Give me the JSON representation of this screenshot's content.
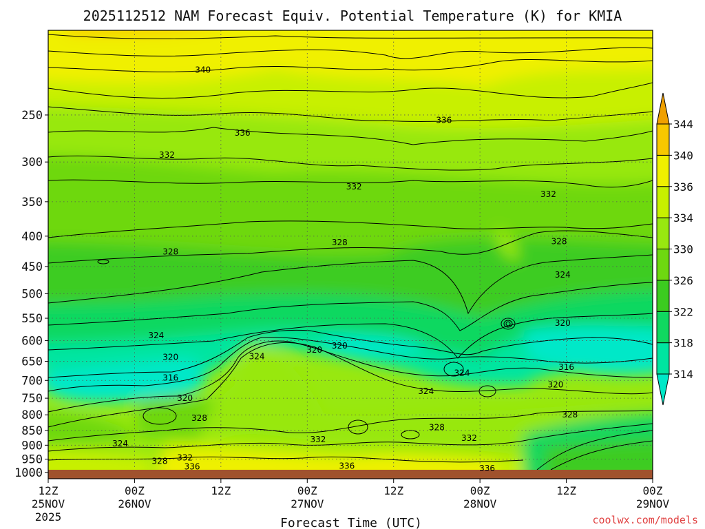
{
  "chart_data": {
    "type": "heatmap",
    "title": "2025112512 NAM Forecast Equiv. Potential Temperature (K) for KMIA",
    "xlabel": "Forecast Time (UTC)",
    "ylabel": "",
    "watermark": "coolwx.com/models",
    "x_ticks": [
      {
        "time": "12Z",
        "date": "25NOV",
        "year": "2025",
        "hour": 0
      },
      {
        "time": "00Z",
        "date": "26NOV",
        "year": "",
        "hour": 12
      },
      {
        "time": "12Z",
        "date": "",
        "year": "",
        "hour": 24
      },
      {
        "time": "00Z",
        "date": "27NOV",
        "year": "",
        "hour": 36
      },
      {
        "time": "12Z",
        "date": "",
        "year": "",
        "hour": 48
      },
      {
        "time": "00Z",
        "date": "28NOV",
        "year": "",
        "hour": 60
      },
      {
        "time": "12Z",
        "date": "",
        "year": "",
        "hour": 72
      },
      {
        "time": "00Z",
        "date": "29NOV",
        "year": "",
        "hour": 84
      }
    ],
    "x_range_hours": [
      0,
      84
    ],
    "y_scale": "log-pressure (hPa), inverted",
    "y_range": [
      1025,
      180
    ],
    "y_ticks": [
      250,
      300,
      350,
      400,
      450,
      500,
      550,
      600,
      650,
      700,
      750,
      800,
      850,
      900,
      950,
      1000
    ],
    "grid": true,
    "colorbar": {
      "position": "right",
      "levels": [
        314,
        318,
        322,
        326,
        330,
        334,
        336,
        340,
        344
      ],
      "colors": [
        "#00e8c8",
        "#00e5a0",
        "#10d860",
        "#3ccc20",
        "#6ed810",
        "#98e810",
        "#c8f000",
        "#f0f000",
        "#f8c800",
        "#f0a000"
      ]
    },
    "contour_labels": [
      {
        "value": "340",
        "hour": 21.5,
        "p": 210
      },
      {
        "value": "336",
        "hour": 27,
        "p": 268
      },
      {
        "value": "336",
        "hour": 55,
        "p": 255
      },
      {
        "value": "332",
        "hour": 16.5,
        "p": 292
      },
      {
        "value": "332",
        "hour": 42.5,
        "p": 330
      },
      {
        "value": "332",
        "hour": 69.5,
        "p": 340
      },
      {
        "value": "328",
        "hour": 17,
        "p": 425
      },
      {
        "value": "328",
        "hour": 40.5,
        "p": 410
      },
      {
        "value": "328",
        "hour": 71,
        "p": 408
      },
      {
        "value": "324",
        "hour": 71.5,
        "p": 465
      },
      {
        "value": "324",
        "hour": 15,
        "p": 588
      },
      {
        "value": "320",
        "hour": 17,
        "p": 640
      },
      {
        "value": "320",
        "hour": 71.5,
        "p": 560
      },
      {
        "value": "324",
        "hour": 29,
        "p": 638
      },
      {
        "value": "320",
        "hour": 37,
        "p": 622
      },
      {
        "value": "320",
        "hour": 40.5,
        "p": 612
      },
      {
        "value": "316",
        "hour": 17,
        "p": 693
      },
      {
        "value": "316",
        "hour": 72,
        "p": 665
      },
      {
        "value": "320",
        "hour": 70.5,
        "p": 712
      },
      {
        "value": "320",
        "hour": 19,
        "p": 750
      },
      {
        "value": "324",
        "hour": 57.5,
        "p": 680
      },
      {
        "value": "324",
        "hour": 52.5,
        "p": 730
      },
      {
        "value": "328",
        "hour": 21,
        "p": 810
      },
      {
        "value": "328",
        "hour": 54,
        "p": 840
      },
      {
        "value": "328",
        "hour": 72.5,
        "p": 800
      },
      {
        "value": "332",
        "hour": 37.5,
        "p": 880
      },
      {
        "value": "332",
        "hour": 58.5,
        "p": 875
      },
      {
        "value": "324",
        "hour": 10,
        "p": 895
      },
      {
        "value": "328",
        "hour": 15.5,
        "p": 958
      },
      {
        "value": "332",
        "hour": 19,
        "p": 945
      },
      {
        "value": "336",
        "hour": 20,
        "p": 978
      },
      {
        "value": "336",
        "hour": 41.5,
        "p": 975
      },
      {
        "value": "336",
        "hour": 61,
        "p": 985
      }
    ]
  }
}
